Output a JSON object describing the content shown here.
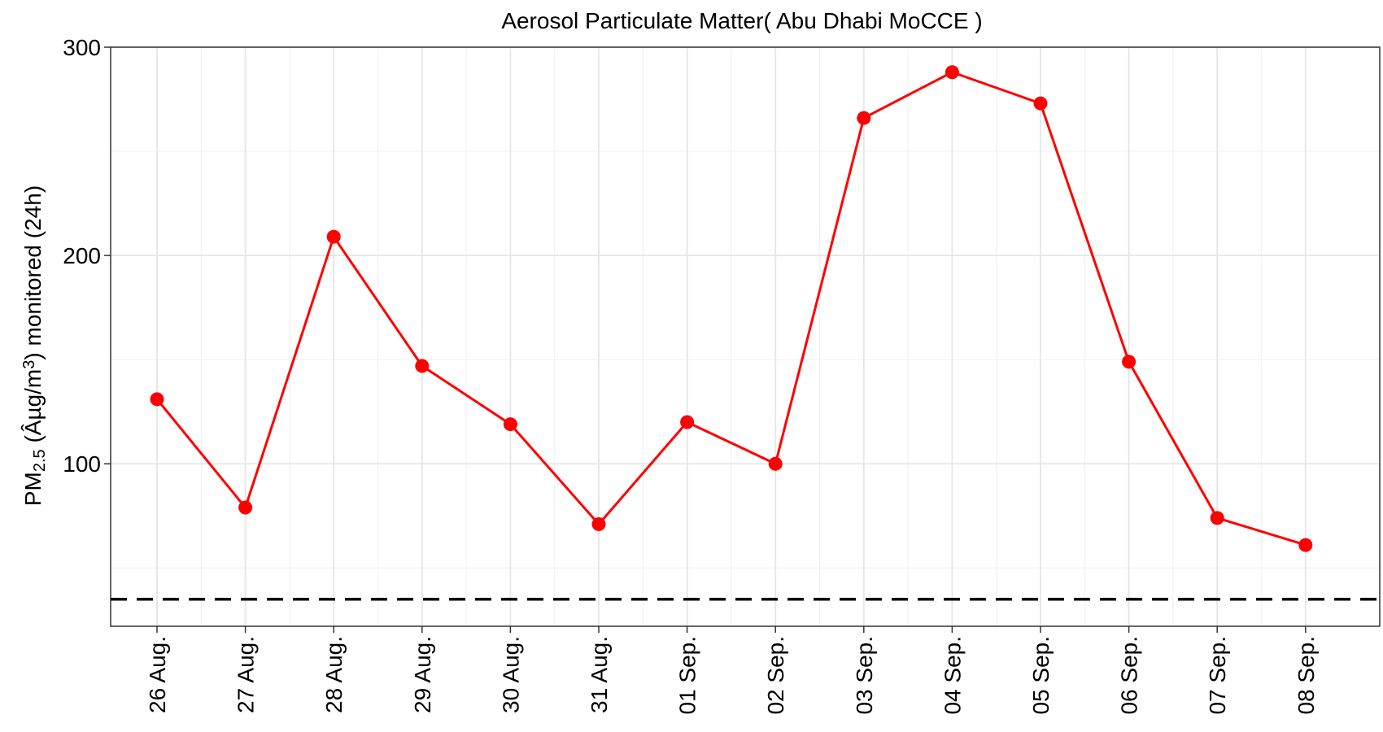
{
  "chart_data": {
    "type": "line",
    "title": "Aerosol Particulate Matter( Abu Dhabi MoCCE )",
    "ylabel": {
      "prefix": "PM",
      "subscript": "2.5",
      "middle": " (Âµg/m",
      "superscript": "3",
      "suffix": ") monitored (24h)"
    },
    "xlabel": "",
    "categories": [
      "26 Aug.",
      "27 Aug.",
      "28 Aug.",
      "29 Aug.",
      "30 Aug.",
      "31 Aug.",
      "01 Sep.",
      "02 Sep.",
      "03 Sep.",
      "04 Sep.",
      "05 Sep.",
      "06 Sep.",
      "07 Sep.",
      "08 Sep."
    ],
    "series": [
      {
        "values": [
          131,
          79,
          209,
          147,
          119,
          71,
          120,
          100,
          266,
          288,
          273,
          149,
          74,
          61
        ],
        "color": "#ff0000"
      }
    ],
    "reference_line": {
      "y": 35,
      "style": "dashed",
      "color": "#000000"
    },
    "ylim": [
      22,
      300
    ],
    "yticks": [
      100,
      200,
      300
    ],
    "grid": true,
    "legend": "none"
  }
}
